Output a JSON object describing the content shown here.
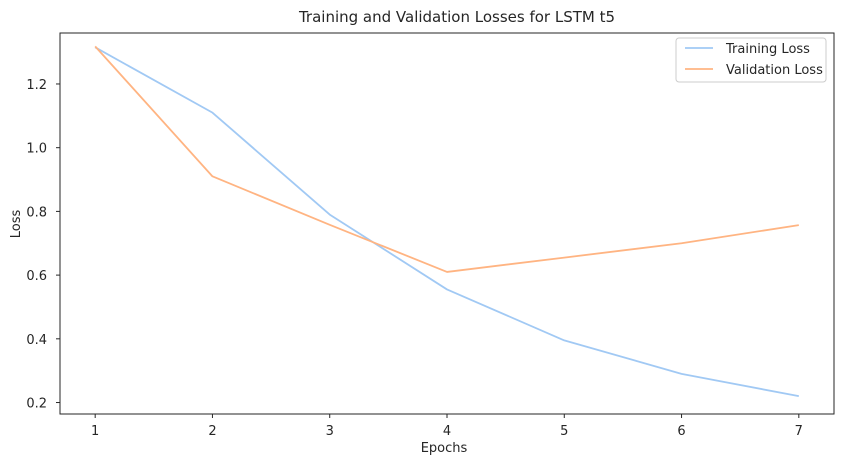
{
  "chart_data": {
    "type": "line",
    "title": "Training and Validation Losses for LSTM t5",
    "xlabel": "Epochs",
    "ylabel": "Loss",
    "x": [
      1,
      2,
      3,
      4,
      5,
      6,
      7
    ],
    "xlim": [
      0.7,
      7.3
    ],
    "ylim": [
      0.164,
      1.36
    ],
    "yticks": [
      0.2,
      0.4,
      0.6,
      0.8,
      1.0,
      1.2
    ],
    "ytick_labels": [
      "0.2",
      "0.4",
      "0.6",
      "0.8",
      "1.0",
      "1.2"
    ],
    "xtick_labels": [
      "1",
      "2",
      "3",
      "4",
      "5",
      "6",
      "7"
    ],
    "grid": false,
    "legend_position": "top-right",
    "series": [
      {
        "name": "Training Loss",
        "color": "#a1c9f4",
        "values": [
          1.315,
          1.11,
          0.79,
          0.555,
          0.395,
          0.29,
          0.22
        ]
      },
      {
        "name": "Validation Loss",
        "color": "#ffb482",
        "values": [
          1.318,
          0.91,
          0.758,
          0.61,
          0.655,
          0.7,
          0.757
        ]
      }
    ]
  }
}
